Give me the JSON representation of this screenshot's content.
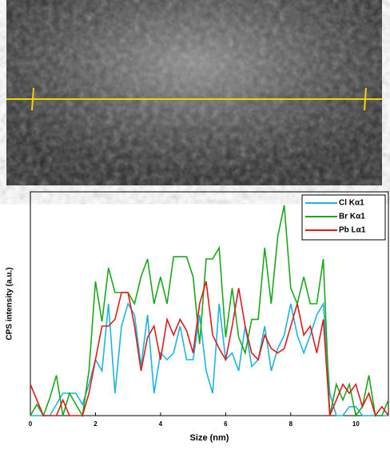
{
  "chart_data": {
    "type": "line",
    "x_label": "Size (nm)",
    "y_label": "CPS intensity (a.u.)",
    "x": [
      0,
      0.2,
      0.4,
      0.6,
      0.8,
      1.0,
      1.2,
      1.4,
      1.6,
      1.8,
      2.0,
      2.2,
      2.4,
      2.6,
      2.8,
      3.0,
      3.2,
      3.4,
      3.6,
      3.8,
      4.0,
      4.2,
      4.4,
      4.6,
      4.8,
      5.0,
      5.2,
      5.4,
      5.6,
      5.8,
      6.0,
      6.2,
      6.4,
      6.6,
      6.8,
      7.0,
      7.2,
      7.4,
      7.6,
      7.8,
      8.0,
      8.2,
      8.4,
      8.6,
      8.8,
      9.0,
      9.2,
      9.4,
      9.6,
      9.8,
      10.0,
      10.2,
      10.4,
      10.6,
      10.8,
      11.0
    ],
    "series": [
      {
        "name": "Cl Kα1",
        "color": "#1cb4e0",
        "values": [
          0,
          0,
          0,
          0,
          5,
          10,
          10,
          10,
          5,
          14,
          25,
          20,
          50,
          10,
          40,
          50,
          45,
          22,
          45,
          10,
          28,
          25,
          28,
          40,
          25,
          25,
          45,
          20,
          10,
          50,
          25,
          28,
          20,
          40,
          22,
          25,
          40,
          20,
          30,
          36,
          50,
          36,
          28,
          36,
          45,
          50,
          10,
          0,
          0,
          4,
          4,
          0,
          0,
          0,
          0,
          0
        ]
      },
      {
        "name": "Br Kα1",
        "color": "#1aa81a",
        "values": [
          0,
          5,
          0,
          8,
          18,
          0,
          10,
          5,
          0,
          20,
          60,
          42,
          66,
          55,
          55,
          55,
          50,
          62,
          70,
          50,
          62,
          50,
          71,
          71,
          71,
          62,
          32,
          70,
          70,
          75,
          35,
          57,
          35,
          28,
          43,
          43,
          75,
          50,
          80,
          94,
          57,
          50,
          62,
          50,
          50,
          70,
          0,
          14,
          7,
          14,
          0,
          4,
          18,
          0,
          0,
          7
        ]
      },
      {
        "name": "Pb Lα1",
        "color": "#e01a1a",
        "values": [
          14,
          7,
          0,
          0,
          0,
          7,
          0,
          0,
          0,
          10,
          25,
          40,
          40,
          43,
          55,
          55,
          40,
          20,
          35,
          40,
          25,
          43,
          36,
          43,
          38,
          28,
          50,
          60,
          36,
          30,
          25,
          40,
          57,
          40,
          28,
          25,
          36,
          30,
          28,
          30,
          40,
          50,
          36,
          40,
          28,
          43,
          0,
          7,
          14,
          10,
          14,
          4,
          10,
          0,
          4,
          0
        ]
      }
    ],
    "xlim": [
      0,
      11
    ],
    "xticks": [
      0,
      2,
      4,
      6,
      8,
      10
    ],
    "ylim": [
      0,
      100
    ],
    "legend": "top-right"
  }
}
